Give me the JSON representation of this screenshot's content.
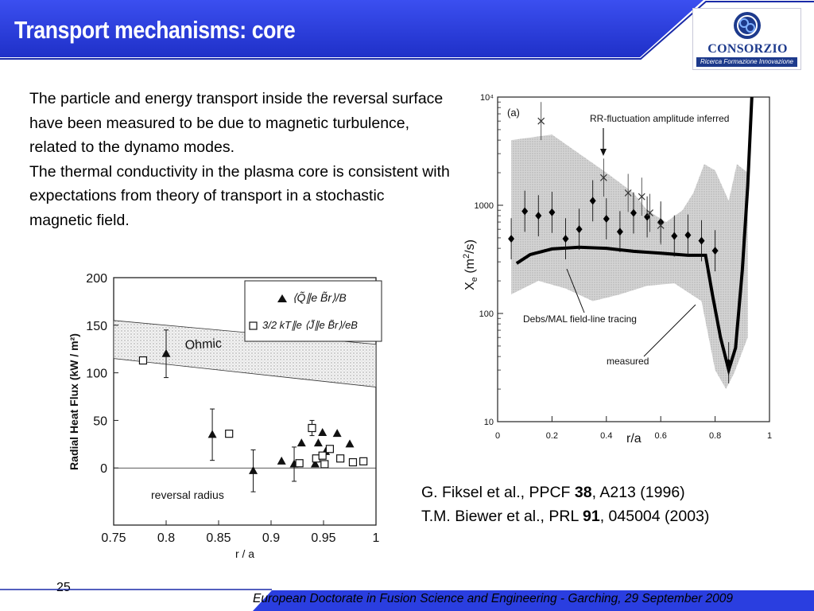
{
  "slide": {
    "title": "Transport mechanisms: core",
    "page_number": "25",
    "footer": "European Doctorate in Fusion Science and Engineering  -  Garching, 29 September 2009"
  },
  "logo": {
    "name": "CONSORZIO RFX",
    "tagline": "Ricerca Formazione Innovazione"
  },
  "colors": {
    "header_blue": "#2a3ee0",
    "header_dark": "#1a2aa8",
    "logo_blue": "#1d3a8c"
  },
  "body": {
    "paragraph1": "The particle and energy transport inside the reversal surface have been measured to be due to magnetic turbulence, related to the dynamo modes.",
    "paragraph2": "The thermal conductivity in the plasma core is consistent with expectations from theory of transport in a stochastic magnetic field."
  },
  "references": [
    {
      "prefix": "G. Fiksel et al., PPCF ",
      "volume": "38",
      "suffix": ", A213 (1996)"
    },
    {
      "prefix": "T.M. Biewer et al., PRL ",
      "volume": "91",
      "suffix": ", 045004 (2003)"
    }
  ],
  "chart_data": [
    {
      "type": "scatter",
      "xlabel": "r / a",
      "ylabel": "Radial Heat Flux (kW / m²)",
      "xlim": [
        0.75,
        1.0
      ],
      "ylim": [
        -60,
        200
      ],
      "x_ticks": [
        "0.75",
        "0.8",
        "0.85",
        "0.9",
        "0.95",
        "1"
      ],
      "y_ticks": [
        "0",
        "50",
        "100",
        "150",
        "200"
      ],
      "annotations": {
        "band_label": "Ohmic",
        "zero_label": "reversal radius"
      },
      "legend": {
        "position": "top-right",
        "entries": [
          {
            "marker": "triangle",
            "label": "⟨Q̃∥e B̃r⟩/B"
          },
          {
            "marker": "square",
            "label": "3/2 kT∥e ⟨J̃∥e B̃r⟩/eB"
          }
        ]
      },
      "ohmic_band": {
        "upper": [
          [
            0.75,
            155
          ],
          [
            1.0,
            130
          ]
        ],
        "lower": [
          [
            0.75,
            115
          ],
          [
            1.0,
            85
          ]
        ]
      },
      "series": [
        {
          "name": "⟨Q̃∥e B̃r⟩/B",
          "marker": "triangle",
          "points": [
            {
              "x": 0.8,
              "y": 120,
              "err": 25
            },
            {
              "x": 0.844,
              "y": 35,
              "err": 27
            },
            {
              "x": 0.883,
              "y": -3,
              "err": 22
            },
            {
              "x": 0.91,
              "y": 7
            },
            {
              "x": 0.922,
              "y": 4,
              "err": 18
            },
            {
              "x": 0.929,
              "y": 26
            },
            {
              "x": 0.942,
              "y": 4
            },
            {
              "x": 0.945,
              "y": 26
            },
            {
              "x": 0.949,
              "y": 37
            },
            {
              "x": 0.952,
              "y": 17
            },
            {
              "x": 0.963,
              "y": 36
            },
            {
              "x": 0.975,
              "y": 25
            }
          ]
        },
        {
          "name": "3/2 kT∥e ⟨J̃∥e B̃r⟩/eB",
          "marker": "square",
          "points": [
            {
              "x": 0.778,
              "y": 113
            },
            {
              "x": 0.86,
              "y": 36
            },
            {
              "x": 0.927,
              "y": 5
            },
            {
              "x": 0.939,
              "y": 42,
              "err": 8
            },
            {
              "x": 0.943,
              "y": 10
            },
            {
              "x": 0.949,
              "y": 13
            },
            {
              "x": 0.951,
              "y": 4
            },
            {
              "x": 0.956,
              "y": 20
            },
            {
              "x": 0.966,
              "y": 10
            },
            {
              "x": 0.978,
              "y": 6
            },
            {
              "x": 0.988,
              "y": 7
            }
          ]
        }
      ]
    },
    {
      "type": "line",
      "panel_label": "(a)",
      "xlabel": "r/a",
      "ylabel": "X_e (m²/s)",
      "xlim": [
        0,
        1
      ],
      "ylim": [
        10,
        10000
      ],
      "y_scale": "log",
      "x_ticks": [
        "0",
        "0.2",
        "0.4",
        "0.6",
        "0.8",
        "1"
      ],
      "y_ticks": [
        "10",
        "100",
        "1000",
        "10⁴"
      ],
      "annotations": [
        "RR-fluctuation amplitude inferred",
        "Debs/MAL field-line tracing",
        "measured"
      ],
      "band_upper": [
        [
          0.05,
          4000
        ],
        [
          0.2,
          4500
        ],
        [
          0.3,
          3000
        ],
        [
          0.4,
          2000
        ],
        [
          0.5,
          1300
        ],
        [
          0.55,
          900
        ],
        [
          0.62,
          700
        ],
        [
          0.68,
          900
        ],
        [
          0.72,
          1300
        ],
        [
          0.76,
          2400
        ],
        [
          0.8,
          2100
        ],
        [
          0.85,
          1100
        ],
        [
          0.88,
          2400
        ],
        [
          0.92,
          2000
        ]
      ],
      "band_lower": [
        [
          0.92,
          60
        ],
        [
          0.87,
          28
        ],
        [
          0.84,
          20
        ],
        [
          0.8,
          30
        ],
        [
          0.75,
          130
        ],
        [
          0.65,
          190
        ],
        [
          0.55,
          180
        ],
        [
          0.45,
          150
        ],
        [
          0.35,
          130
        ],
        [
          0.25,
          170
        ],
        [
          0.15,
          200
        ],
        [
          0.05,
          150
        ]
      ],
      "series": [
        {
          "name": "measured",
          "style": "line",
          "points": [
            [
              0.07,
              290
            ],
            [
              0.12,
              350
            ],
            [
              0.2,
              395
            ],
            [
              0.3,
              410
            ],
            [
              0.4,
              400
            ],
            [
              0.5,
              375
            ],
            [
              0.6,
              360
            ],
            [
              0.7,
              345
            ],
            [
              0.765,
              345
            ],
            [
              0.79,
              150
            ],
            [
              0.82,
              60
            ],
            [
              0.85,
              30
            ],
            [
              0.875,
              48
            ],
            [
              0.9,
              250
            ],
            [
              0.92,
              1500
            ],
            [
              0.935,
              10000
            ]
          ]
        },
        {
          "name": "Debs/MAL field-line tracing",
          "style": "diamond",
          "points": [
            [
              0.05,
              490
            ],
            [
              0.1,
              880
            ],
            [
              0.15,
              800
            ],
            [
              0.2,
              860
            ],
            [
              0.25,
              490
            ],
            [
              0.3,
              600
            ],
            [
              0.35,
              1100
            ],
            [
              0.4,
              750
            ],
            [
              0.45,
              570
            ],
            [
              0.5,
              850
            ],
            [
              0.55,
              780
            ],
            [
              0.6,
              700
            ],
            [
              0.65,
              520
            ],
            [
              0.7,
              530
            ],
            [
              0.75,
              470
            ],
            [
              0.8,
              380
            ],
            [
              0.85,
              35
            ]
          ]
        },
        {
          "name": "RR-fluctuation amplitude inferred",
          "style": "x",
          "points": [
            [
              0.16,
              6000
            ],
            [
              0.39,
              1800
            ],
            [
              0.48,
              1300
            ],
            [
              0.53,
              1200
            ],
            [
              0.56,
              850
            ],
            [
              0.6,
              650
            ]
          ]
        }
      ]
    }
  ]
}
